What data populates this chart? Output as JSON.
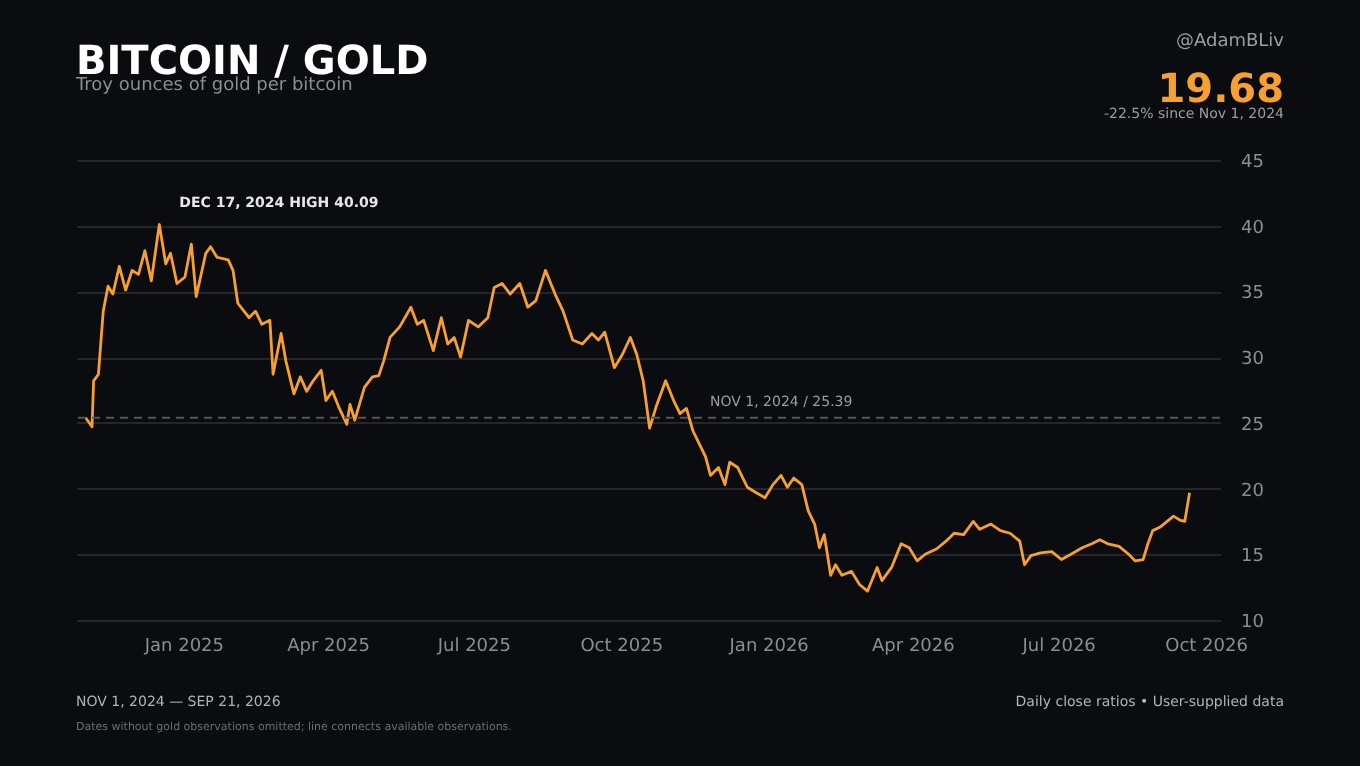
{
  "chart_data": {
    "type": "line",
    "title": "BITCOIN / GOLD",
    "subtitle": "Troy ounces of gold per bitcoin",
    "x": [
      "2024-11-01",
      "2024-11-05",
      "2024-11-06",
      "2024-11-09",
      "2024-11-12",
      "2024-11-15",
      "2024-11-18",
      "2024-11-22",
      "2024-11-26",
      "2024-11-30",
      "2024-12-04",
      "2024-12-08",
      "2024-12-12",
      "2024-12-17",
      "2024-12-21",
      "2024-12-24",
      "2024-12-28",
      "2025-01-02",
      "2025-01-06",
      "2025-01-09",
      "2025-01-15",
      "2025-01-18",
      "2025-01-22",
      "2025-01-29",
      "2025-02-01",
      "2025-02-04",
      "2025-02-11",
      "2025-02-15",
      "2025-02-19",
      "2025-02-24",
      "2025-02-26",
      "2025-03-03",
      "2025-03-06",
      "2025-03-11",
      "2025-03-15",
      "2025-03-19",
      "2025-03-23",
      "2025-03-28",
      "2025-03-31",
      "2025-04-04",
      "2025-04-08",
      "2025-04-13",
      "2025-04-15",
      "2025-04-18",
      "2025-04-24",
      "2025-04-29",
      "2025-05-03",
      "2025-05-06",
      "2025-05-10",
      "2025-05-16",
      "2025-05-23",
      "2025-05-27",
      "2025-05-31",
      "2025-06-06",
      "2025-06-11",
      "2025-06-15",
      "2025-06-19",
      "2025-06-23",
      "2025-06-28",
      "2025-07-04",
      "2025-07-10",
      "2025-07-14",
      "2025-07-19",
      "2025-07-24",
      "2025-07-30",
      "2025-08-04",
      "2025-08-09",
      "2025-08-15",
      "2025-08-21",
      "2025-08-26",
      "2025-09-01",
      "2025-09-07",
      "2025-09-13",
      "2025-09-17",
      "2025-09-21",
      "2025-09-27",
      "2025-10-02",
      "2025-10-07",
      "2025-10-11",
      "2025-10-15",
      "2025-10-19",
      "2025-10-23",
      "2025-10-29",
      "2025-11-03",
      "2025-11-07",
      "2025-11-11",
      "2025-11-15",
      "2025-11-21",
      "2025-11-23",
      "2025-11-26",
      "2025-12-01",
      "2025-12-05",
      "2025-12-08",
      "2025-12-13",
      "2025-12-19",
      "2025-12-23",
      "2025-12-30",
      "2026-01-04",
      "2026-01-09",
      "2026-01-13",
      "2026-01-17",
      "2026-01-22",
      "2026-01-26",
      "2026-01-30",
      "2026-02-02",
      "2026-02-05",
      "2026-02-09",
      "2026-02-12",
      "2026-02-16",
      "2026-02-22",
      "2026-02-27",
      "2026-03-04",
      "2026-03-10",
      "2026-03-13",
      "2026-03-19",
      "2026-03-25",
      "2026-03-30",
      "2026-04-04",
      "2026-04-09",
      "2026-04-16",
      "2026-04-22",
      "2026-04-27",
      "2026-05-03",
      "2026-05-09",
      "2026-05-13",
      "2026-05-20",
      "2026-05-26",
      "2026-06-01",
      "2026-06-07",
      "2026-06-10",
      "2026-06-14",
      "2026-06-20",
      "2026-06-27",
      "2026-07-03",
      "2026-07-09",
      "2026-07-16",
      "2026-07-22",
      "2026-07-27",
      "2026-08-01",
      "2026-08-08",
      "2026-08-14",
      "2026-08-18",
      "2026-08-23",
      "2026-08-26",
      "2026-08-29",
      "2026-09-03",
      "2026-09-07",
      "2026-09-11",
      "2026-09-15",
      "2026-09-18",
      "2026-09-21"
    ],
    "series": [
      {
        "color": "#f7a030",
        "values": [
          25.39,
          24.7,
          28.2,
          28.7,
          33.5,
          35.4,
          34.8,
          36.9,
          35.1,
          36.6,
          36.3,
          38.1,
          35.8,
          40.09,
          37.1,
          37.9,
          35.6,
          36.1,
          38.6,
          34.6,
          37.9,
          38.4,
          37.6,
          37.4,
          36.6,
          34.1,
          33.0,
          33.5,
          32.5,
          32.8,
          28.7,
          31.8,
          29.7,
          27.2,
          28.5,
          27.4,
          28.2,
          29.0,
          26.7,
          27.4,
          26.2,
          24.9,
          26.4,
          25.2,
          27.7,
          28.5,
          28.6,
          29.7,
          31.5,
          32.3,
          33.8,
          32.5,
          32.8,
          30.5,
          33.0,
          31.0,
          31.5,
          30.0,
          32.8,
          32.3,
          33.0,
          35.3,
          35.6,
          34.8,
          35.6,
          33.8,
          34.3,
          36.6,
          34.8,
          33.5,
          31.3,
          31.0,
          31.8,
          31.3,
          31.9,
          29.2,
          30.2,
          31.5,
          30.2,
          28.2,
          24.6,
          26.2,
          28.2,
          26.7,
          25.7,
          26.1,
          24.4,
          22.9,
          22.4,
          21.0,
          21.6,
          20.3,
          22.0,
          21.6,
          20.1,
          19.8,
          19.3,
          20.3,
          21.0,
          20.1,
          20.8,
          20.3,
          18.3,
          17.3,
          15.5,
          16.5,
          13.4,
          14.2,
          13.4,
          13.7,
          12.7,
          12.2,
          14.0,
          13.0,
          14.0,
          15.8,
          15.5,
          14.5,
          15.0,
          15.4,
          16.0,
          16.6,
          16.5,
          17.5,
          16.9,
          17.3,
          16.8,
          16.6,
          16.0,
          14.2,
          14.9,
          15.1,
          15.2,
          14.6,
          15.0,
          15.5,
          15.8,
          16.1,
          15.8,
          15.6,
          15.0,
          14.5,
          14.6,
          15.8,
          16.8,
          17.1,
          17.5,
          17.9,
          17.6,
          17.5,
          19.68
        ]
      }
    ],
    "xlim": [
      "2024-10-26",
      "2026-10-10"
    ],
    "xticks": [
      {
        "value": "2025-01-01",
        "label": "Jan 2025"
      },
      {
        "value": "2025-04-01",
        "label": "Apr 2025"
      },
      {
        "value": "2025-07-01",
        "label": "Jul 2025"
      },
      {
        "value": "2025-10-01",
        "label": "Oct 2025"
      },
      {
        "value": "2026-01-01",
        "label": "Jan 2026"
      },
      {
        "value": "2026-04-01",
        "label": "Apr 2026"
      },
      {
        "value": "2026-07-01",
        "label": "Jul 2026"
      },
      {
        "value": "2026-10-01",
        "label": "Oct 2026"
      }
    ],
    "ylim": [
      10,
      45
    ],
    "yticks": [
      10,
      15,
      20,
      25,
      30,
      35,
      40,
      45
    ],
    "grid": "y",
    "legend": false,
    "marker": "none",
    "line_style": "solid",
    "ref_lines": [
      {
        "axis": "y",
        "value": 25.39,
        "label": "NOV 1, 2024  /  25.39",
        "color": "#555555",
        "line_style": "dashed"
      }
    ],
    "annotations": [
      {
        "text": "DEC 17, 2024  HIGH  40.09",
        "x": "2024-12-17",
        "y": 40.09
      },
      "@AdamBLiv",
      "19.68",
      "-22.5% since Nov 1, 2024",
      "NOV 1, 2024 — SEP 21, 2026",
      "Daily close ratios • User-supplied data",
      "Dates without gold observations omitted; line connects available observations."
    ]
  }
}
